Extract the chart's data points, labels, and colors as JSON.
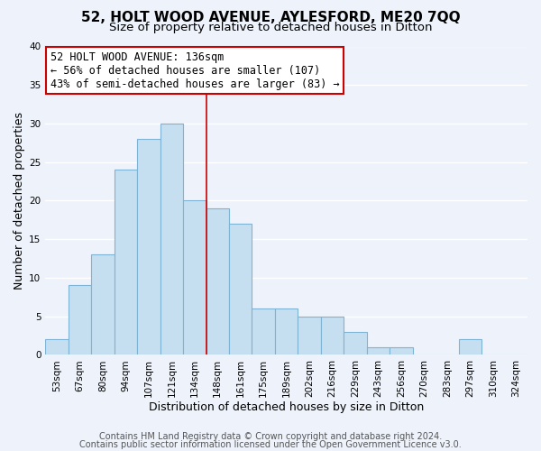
{
  "title": "52, HOLT WOOD AVENUE, AYLESFORD, ME20 7QQ",
  "subtitle": "Size of property relative to detached houses in Ditton",
  "xlabel": "Distribution of detached houses by size in Ditton",
  "ylabel": "Number of detached properties",
  "bar_labels": [
    "53sqm",
    "67sqm",
    "80sqm",
    "94sqm",
    "107sqm",
    "121sqm",
    "134sqm",
    "148sqm",
    "161sqm",
    "175sqm",
    "189sqm",
    "202sqm",
    "216sqm",
    "229sqm",
    "243sqm",
    "256sqm",
    "270sqm",
    "283sqm",
    "297sqm",
    "310sqm",
    "324sqm"
  ],
  "bar_values": [
    2,
    9,
    13,
    24,
    28,
    30,
    20,
    19,
    17,
    6,
    6,
    5,
    5,
    3,
    1,
    1,
    0,
    0,
    2,
    0,
    0
  ],
  "bar_color": "#c5dff0",
  "bar_edgecolor": "#7fb3d3",
  "highlight_bar_index": 6,
  "vline_x": 6.5,
  "annotation_box_text": "52 HOLT WOOD AVENUE: 136sqm\n← 56% of detached houses are smaller (107)\n43% of semi-detached houses are larger (83) →",
  "annotation_box_edgecolor": "#cc0000",
  "annotation_box_facecolor": "white",
  "ylim": [
    0,
    40
  ],
  "yticks": [
    0,
    5,
    10,
    15,
    20,
    25,
    30,
    35,
    40
  ],
  "footer_line1": "Contains HM Land Registry data © Crown copyright and database right 2024.",
  "footer_line2": "Contains public sector information licensed under the Open Government Licence v3.0.",
  "background_color": "#edf2fb",
  "grid_color": "white",
  "title_fontsize": 11,
  "subtitle_fontsize": 9.5,
  "axis_label_fontsize": 9,
  "tick_fontsize": 7.5,
  "annotation_fontsize": 8.5,
  "footer_fontsize": 7
}
